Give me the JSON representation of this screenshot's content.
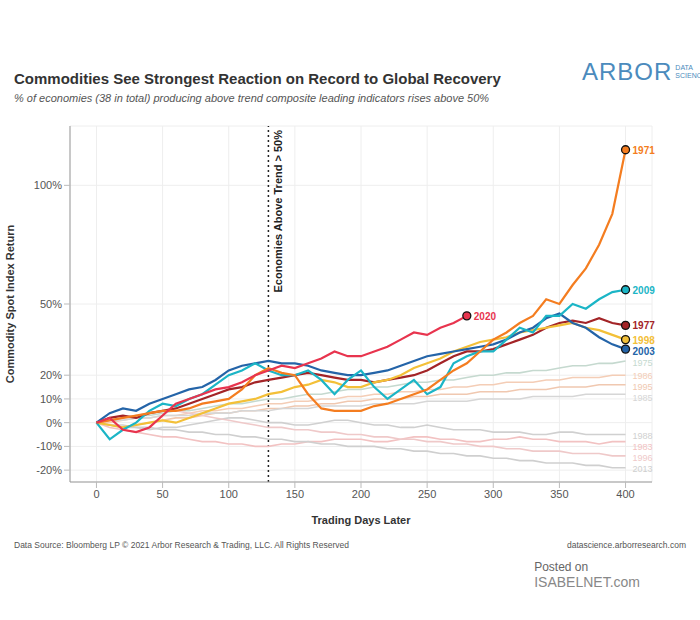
{
  "chart_data": {
    "type": "line",
    "title": "Commodities See Strongest Reaction on Record to Global Recovery",
    "subtitle": "% of economies (38 in total) producing above trend composite leading indicators rises above 50%",
    "logo": "ARBOR",
    "logo_tag": [
      "DATA",
      "SCIENCE"
    ],
    "x_label": "Trading Days Later",
    "y_label": "Commodity Spot Index Return",
    "source": "Data Source: Bloomberg LP © 2021 Arbor Research & Trading, LLC. All Rights Reserved",
    "url": "datascience.arborresearch.com",
    "watermark": [
      "Posted on",
      "ISABELNET.com"
    ],
    "annotations": [
      {
        "x": 130,
        "text": "Economies Above Trend > 50%"
      }
    ],
    "x": [
      0,
      10,
      20,
      30,
      40,
      50,
      60,
      70,
      80,
      90,
      100,
      110,
      120,
      130,
      140,
      150,
      160,
      170,
      180,
      190,
      200,
      210,
      220,
      230,
      240,
      250,
      260,
      270,
      280,
      290,
      300,
      310,
      320,
      330,
      340,
      350,
      360,
      370,
      380,
      390,
      400
    ],
    "xlim": [
      -20,
      420
    ],
    "xticks": [
      0,
      50,
      100,
      150,
      200,
      250,
      300,
      350,
      400
    ],
    "ylim": [
      -25,
      125
    ],
    "yticks": [
      {
        "value": -20,
        "label": "-20%"
      },
      {
        "value": -10,
        "label": "-10%"
      },
      {
        "value": 0,
        "label": "0%"
      },
      {
        "value": 10,
        "label": "10%"
      },
      {
        "value": 20,
        "label": "20%"
      },
      {
        "value": 50,
        "label": "50%"
      },
      {
        "value": 100,
        "label": "100%"
      }
    ],
    "grid": true,
    "series": [
      {
        "name": "1975",
        "color": "#c5d9cf",
        "marker": "none",
        "values": [
          0,
          1,
          2,
          3,
          3,
          4,
          5,
          5,
          6,
          7,
          8,
          8,
          9,
          10,
          10,
          11,
          12,
          12,
          13,
          14,
          14,
          15,
          15,
          16,
          17,
          17,
          18,
          18,
          19,
          20,
          20,
          21,
          21,
          22,
          22,
          23,
          24,
          24,
          25,
          25,
          26
        ]
      },
      {
        "name": "1986",
        "color": "#f4cdb6",
        "marker": "none",
        "values": [
          0,
          0,
          1,
          2,
          2,
          3,
          3,
          4,
          5,
          5,
          6,
          6,
          7,
          8,
          8,
          9,
          9,
          10,
          10,
          11,
          11,
          12,
          12,
          13,
          13,
          14,
          14,
          15,
          15,
          16,
          16,
          17,
          17,
          17,
          18,
          18,
          19,
          19,
          19,
          20,
          20
        ]
      },
      {
        "name": "1995",
        "color": "#f0c8b0",
        "marker": "none",
        "values": [
          0,
          -1,
          -2,
          -1,
          0,
          1,
          2,
          2,
          3,
          4,
          4,
          5,
          5,
          6,
          6,
          7,
          7,
          8,
          8,
          9,
          9,
          10,
          10,
          10,
          11,
          11,
          12,
          12,
          12,
          13,
          13,
          13,
          14,
          14,
          14,
          15,
          15,
          15,
          16,
          16,
          16
        ]
      },
      {
        "name": "1985",
        "color": "#d6d6d6",
        "marker": "none",
        "values": [
          0,
          1,
          1,
          2,
          2,
          3,
          3,
          3,
          4,
          4,
          4,
          5,
          5,
          5,
          6,
          6,
          6,
          7,
          7,
          7,
          7,
          8,
          8,
          8,
          8,
          9,
          9,
          9,
          9,
          10,
          10,
          10,
          10,
          11,
          11,
          11,
          11,
          12,
          12,
          12,
          12
        ]
      },
      {
        "name": "1988",
        "color": "#d0d0d0",
        "marker": "none",
        "values": [
          0,
          -1,
          -2,
          -2,
          -3,
          -2,
          -2,
          -1,
          0,
          1,
          2,
          2,
          1,
          0,
          0,
          -1,
          -1,
          0,
          1,
          1,
          0,
          -1,
          -1,
          -2,
          -2,
          -1,
          -2,
          -3,
          -3,
          -3,
          -4,
          -4,
          -4,
          -5,
          -5,
          -4,
          -4,
          -5,
          -5,
          -5,
          -5
        ]
      },
      {
        "name": "1983",
        "color": "#f2c2c2",
        "marker": "none",
        "values": [
          0,
          -2,
          -3,
          -4,
          -5,
          -6,
          -6,
          -7,
          -8,
          -8,
          -9,
          -9,
          -10,
          -10,
          -9,
          -9,
          -8,
          -8,
          -7,
          -7,
          -7,
          -8,
          -8,
          -7,
          -6,
          -6,
          -7,
          -7,
          -8,
          -8,
          -7,
          -7,
          -6,
          -7,
          -7,
          -8,
          -8,
          -8,
          -9,
          -8,
          -8
        ]
      },
      {
        "name": "1996",
        "color": "#efc9c9",
        "marker": "none",
        "values": [
          0,
          1,
          2,
          3,
          4,
          5,
          5,
          4,
          3,
          2,
          1,
          0,
          -1,
          -2,
          -2,
          -3,
          -3,
          -4,
          -4,
          -5,
          -5,
          -6,
          -6,
          -7,
          -7,
          -8,
          -8,
          -9,
          -9,
          -10,
          -10,
          -11,
          -11,
          -12,
          -12,
          -12,
          -13,
          -13,
          -13,
          -14,
          -14
        ]
      },
      {
        "name": "2013",
        "color": "#cfcfcf",
        "marker": "none",
        "values": [
          0,
          -1,
          -1,
          -2,
          -2,
          -3,
          -3,
          -4,
          -4,
          -5,
          -5,
          -6,
          -6,
          -7,
          -7,
          -8,
          -8,
          -9,
          -9,
          -10,
          -10,
          -10,
          -11,
          -11,
          -12,
          -12,
          -13,
          -13,
          -14,
          -14,
          -15,
          -15,
          -16,
          -16,
          -17,
          -17,
          -17,
          -18,
          -18,
          -19,
          -19
        ]
      },
      {
        "name": "1977",
        "color": "#a32427",
        "marker": "circle",
        "values": [
          0,
          2,
          3,
          2,
          4,
          5,
          6,
          8,
          10,
          12,
          14,
          15,
          17,
          18,
          19,
          20,
          21,
          20,
          19,
          18,
          18,
          17,
          18,
          19,
          20,
          22,
          25,
          28,
          30,
          30,
          31,
          33,
          35,
          37,
          40,
          42,
          43,
          42,
          44,
          42,
          41
        ]
      },
      {
        "name": "1998",
        "color": "#f3c038",
        "marker": "circle",
        "values": [
          0,
          -1,
          -2,
          -1,
          0,
          1,
          0,
          2,
          4,
          6,
          8,
          9,
          10,
          12,
          13,
          15,
          16,
          18,
          17,
          15,
          15,
          17,
          18,
          20,
          23,
          25,
          27,
          30,
          32,
          34,
          35,
          36,
          38,
          39,
          40,
          41,
          42,
          40,
          39,
          37,
          35
        ]
      },
      {
        "name": "2003",
        "color": "#2464a8",
        "marker": "circle",
        "values": [
          0,
          4,
          6,
          5,
          8,
          10,
          12,
          14,
          15,
          18,
          22,
          24,
          25,
          26,
          25,
          25,
          24,
          22,
          21,
          20,
          20,
          21,
          22,
          24,
          26,
          28,
          29,
          30,
          31,
          32,
          33,
          35,
          38,
          40,
          44,
          46,
          42,
          40,
          36,
          33,
          31
        ]
      },
      {
        "name": "2009",
        "color": "#1bb5c6",
        "marker": "circle",
        "values": [
          0,
          -7,
          -3,
          0,
          5,
          8,
          7,
          10,
          12,
          16,
          20,
          22,
          25,
          22,
          20,
          20,
          22,
          18,
          12,
          18,
          22,
          15,
          10,
          14,
          18,
          12,
          15,
          25,
          28,
          30,
          30,
          35,
          40,
          38,
          45,
          45,
          50,
          48,
          52,
          55,
          56
        ]
      },
      {
        "name": "1971",
        "color": "#f47d20",
        "marker": "circle",
        "values": [
          0,
          1,
          2,
          3,
          4,
          5,
          5,
          6,
          8,
          9,
          10,
          14,
          20,
          23,
          21,
          20,
          12,
          6,
          5,
          5,
          5,
          7,
          8,
          10,
          12,
          14,
          18,
          22,
          25,
          30,
          35,
          38,
          42,
          45,
          52,
          50,
          58,
          65,
          75,
          88,
          115
        ]
      },
      {
        "name": "2020",
        "color": "#e8344e",
        "marker": "circle",
        "values": [
          0,
          2,
          -3,
          -4,
          -2,
          3,
          8,
          10,
          12,
          14,
          15,
          17,
          20,
          22,
          24,
          23,
          25,
          27,
          30,
          28,
          28,
          30,
          32,
          35,
          38,
          37,
          40,
          42,
          45,
          null,
          null,
          null,
          null,
          null,
          null,
          null,
          null,
          null,
          null,
          null,
          null
        ]
      }
    ]
  }
}
